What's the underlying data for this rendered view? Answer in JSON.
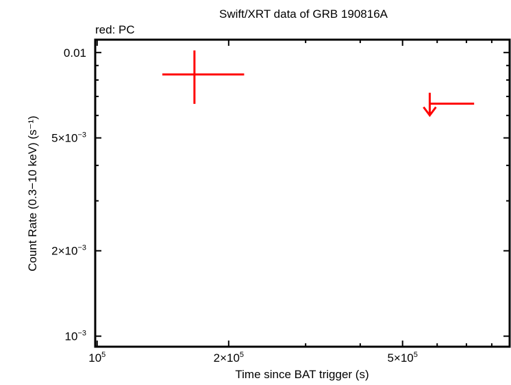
{
  "chart_data": {
    "type": "scatter",
    "title": "Swift/XRT data of GRB 190816A",
    "subtitle": "red: PC",
    "xlabel": "Time since BAT trigger (s)",
    "ylabel": "Count Rate (0.3−10 keV) (s⁻¹)",
    "xscale": "log",
    "yscale": "log",
    "xlim": [
      99000,
      879000
    ],
    "ylim": [
      0.000918,
      0.0111
    ],
    "grid": false,
    "xticks": [
      {
        "value": 100000,
        "label_base": "10",
        "label_exp": "5"
      },
      {
        "value": 200000,
        "label_base": "2×10",
        "label_exp": "5"
      },
      {
        "value": 500000,
        "label_base": "5×10",
        "label_exp": "5"
      }
    ],
    "xminor": [
      300000,
      400000,
      600000,
      700000,
      800000
    ],
    "yticks": [
      {
        "value": 0.01,
        "label_base": "0.01",
        "label_exp": ""
      },
      {
        "value": 0.005,
        "label_base": "5×10",
        "label_exp": "−3"
      },
      {
        "value": 0.002,
        "label_base": "2×10",
        "label_exp": "−3"
      },
      {
        "value": 0.001,
        "label_base": "10",
        "label_exp": "−3"
      }
    ],
    "yminor": [
      0.009,
      0.008,
      0.007,
      0.006,
      0.004,
      0.003
    ],
    "series": [
      {
        "name": "PC",
        "color": "#ff0000",
        "points": [
          {
            "x": 167000,
            "xlo": 141000,
            "xhi": 217000,
            "y": 0.00837,
            "ylo": 0.00659,
            "yhi": 0.01017,
            "upper_limit": false
          },
          {
            "x": 577000,
            "xlo": 577000,
            "xhi": 729000,
            "y": 0.0066,
            "upper_limit": true
          }
        ]
      }
    ]
  }
}
